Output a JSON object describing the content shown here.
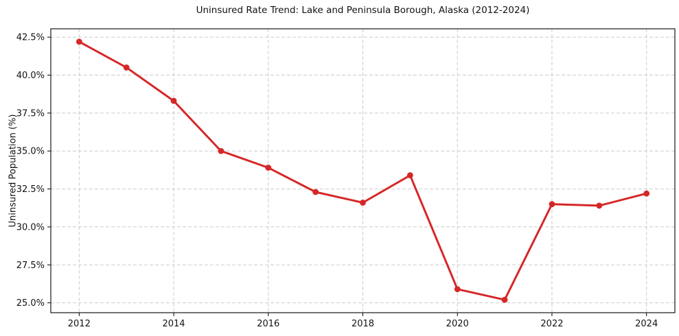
{
  "page": {
    "background_color": "#ffffff"
  },
  "chart_data": {
    "type": "line",
    "title": "Uninsured Rate Trend: Lake and Peninsula Borough, Alaska (2012-2024)",
    "xlabel": "",
    "ylabel": "Uninsured Population (%)",
    "x": [
      2012,
      2013,
      2014,
      2015,
      2016,
      2017,
      2018,
      2019,
      2020,
      2021,
      2022,
      2023,
      2024
    ],
    "values": [
      42.2,
      40.5,
      38.3,
      35.0,
      33.9,
      32.3,
      31.6,
      33.4,
      25.9,
      25.2,
      31.5,
      31.4,
      32.2
    ],
    "xticks": [
      2012,
      2014,
      2016,
      2018,
      2020,
      2022,
      2024
    ],
    "xtick_labels": [
      "2012",
      "2014",
      "2016",
      "2018",
      "2020",
      "2022",
      "2024"
    ],
    "yticks": [
      25.0,
      27.5,
      30.0,
      32.5,
      35.0,
      37.5,
      40.0,
      42.5
    ],
    "ytick_labels": [
      "25.0%",
      "27.5%",
      "30.0%",
      "32.5%",
      "35.0%",
      "37.5%",
      "40.0%",
      "42.5%"
    ],
    "xlim": [
      2011.4,
      2024.6
    ],
    "ylim": [
      24.35,
      43.05
    ],
    "grid": true,
    "legend": "none",
    "line_color": "#d62728",
    "marker_color": "#d62728",
    "marker": "circle"
  }
}
